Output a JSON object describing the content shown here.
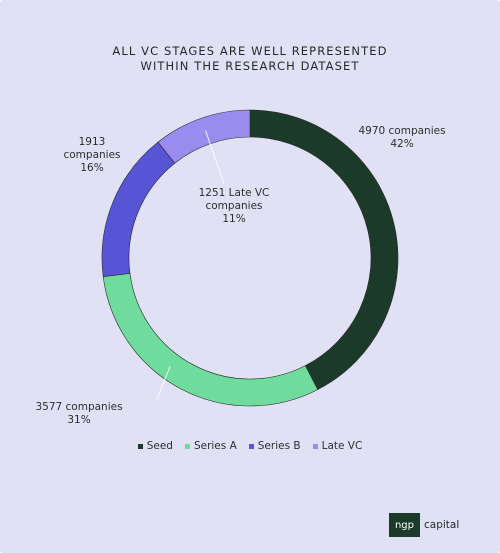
{
  "title_lines": [
    "ALL VC STAGES ARE WELL REPRESENTED",
    "WITHIN THE RESEARCH DATASET"
  ],
  "chart_data": {
    "type": "pie",
    "variant": "donut",
    "categories": [
      "Seed",
      "Series A",
      "Series B",
      "Late VC"
    ],
    "values": [
      4970,
      3577,
      1913,
      1251
    ],
    "percents": [
      42,
      31,
      16,
      11
    ],
    "colors": [
      "#1b3a2a",
      "#6fdc9e",
      "#5754d6",
      "#9a8cee"
    ],
    "legend_position": "bottom",
    "data_labels": [
      {
        "line1": "4970 companies",
        "line2": "42%"
      },
      {
        "line1": "3577 companies",
        "line2": "31%"
      },
      {
        "line1": "1913",
        "line2": "companies",
        "line3": "16%"
      },
      {
        "line1": "1251 Late VC",
        "line2": "companies",
        "line3": "11%"
      }
    ]
  },
  "brand": {
    "logo_text": "ngp",
    "text": "capital",
    "color": "#1b3a2a"
  },
  "background_color": "#e1e1f6"
}
